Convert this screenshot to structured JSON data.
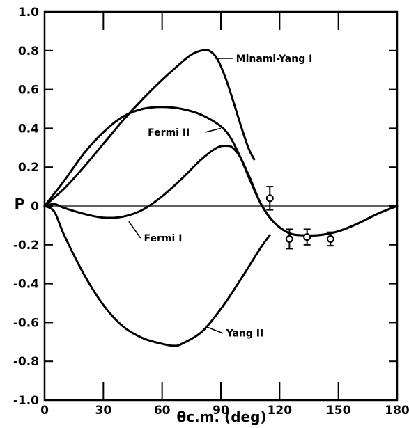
{
  "chart_data": {
    "type": "line",
    "xlabel": "θc.m. (deg)",
    "ylabel": "P",
    "xlim": [
      0,
      180
    ],
    "ylim": [
      -1.0,
      1.0
    ],
    "x_ticks": [
      0,
      30,
      60,
      90,
      120,
      150,
      180
    ],
    "x_tick_labels": [
      "0",
      "30",
      "60",
      "90",
      "120",
      "150",
      "180"
    ],
    "y_ticks": [
      1.0,
      0.8,
      0.6,
      0.4,
      0.2,
      0,
      -0.2,
      -0.4,
      -0.6,
      -0.8,
      -1.0
    ],
    "y_tick_labels": [
      "1.0",
      "0.8",
      "0.6",
      "0.4",
      "0.2",
      "0",
      "-0.2",
      "-0.4",
      "-0.6",
      "-0.8",
      "-1.0"
    ],
    "grid": false,
    "series": [
      {
        "name": "Minami-Yang I",
        "x": [
          0,
          10,
          20,
          30,
          40,
          50,
          60,
          70,
          75,
          80,
          84,
          88,
          92,
          96,
          100,
          104,
          107
        ],
        "y": [
          0,
          0.09,
          0.2,
          0.32,
          0.44,
          0.55,
          0.65,
          0.74,
          0.78,
          0.8,
          0.8,
          0.76,
          0.67,
          0.55,
          0.42,
          0.3,
          0.24
        ]
      },
      {
        "name": "Fermi II",
        "x": [
          0,
          10,
          20,
          30,
          40,
          50,
          60,
          70,
          80,
          90,
          95,
          100,
          105,
          110,
          115,
          120,
          125,
          130,
          140,
          150,
          160,
          170,
          180
        ],
        "y": [
          0,
          0.13,
          0.27,
          0.38,
          0.46,
          0.5,
          0.51,
          0.5,
          0.47,
          0.41,
          0.35,
          0.25,
          0.13,
          0.02,
          -0.06,
          -0.11,
          -0.14,
          -0.15,
          -0.15,
          -0.13,
          -0.09,
          -0.04,
          0
        ]
      },
      {
        "name": "Fermi I",
        "x": [
          0,
          5,
          10,
          20,
          30,
          40,
          50,
          60,
          70,
          80,
          88,
          93,
          96,
          100,
          105,
          110,
          115,
          120,
          125,
          130,
          140,
          150,
          160,
          170,
          180
        ],
        "y": [
          0,
          0.01,
          -0.01,
          -0.04,
          -0.06,
          -0.055,
          -0.02,
          0.05,
          0.14,
          0.24,
          0.3,
          0.31,
          0.3,
          0.25,
          0.14,
          0.02,
          -0.06,
          -0.11,
          -0.14,
          -0.15,
          -0.15,
          -0.13,
          -0.09,
          -0.04,
          0
        ]
      },
      {
        "name": "Yang II",
        "x": [
          0,
          5,
          10,
          20,
          30,
          40,
          50,
          60,
          66,
          70,
          80,
          90,
          100,
          110,
          115
        ],
        "y": [
          0,
          -0.03,
          -0.15,
          -0.35,
          -0.51,
          -0.62,
          -0.68,
          -0.71,
          -0.72,
          -0.71,
          -0.65,
          -0.53,
          -0.38,
          -0.22,
          -0.15
        ]
      }
    ],
    "data_points": {
      "x": [
        115,
        125,
        134,
        146
      ],
      "y": [
        0.04,
        -0.17,
        -0.16,
        -0.17
      ],
      "err": [
        0.06,
        0.05,
        0.04,
        0.035
      ]
    },
    "annotations": [
      {
        "text": "Minami-Yang I",
        "series": "Minami-Yang I"
      },
      {
        "text": "Fermi II",
        "series": "Fermi II"
      },
      {
        "text": "Fermi I",
        "series": "Fermi I"
      },
      {
        "text": "Yang II",
        "series": "Yang II"
      }
    ]
  }
}
